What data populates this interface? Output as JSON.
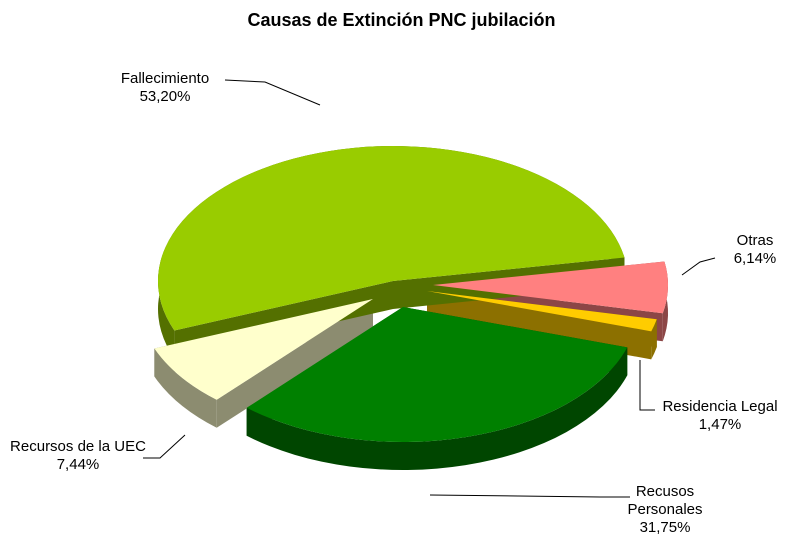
{
  "chart_data": {
    "type": "pie",
    "title": "Causas de Extinción PNC jubilación",
    "categories": [
      "Otras",
      "Residencia Legal",
      "Recusos Personales",
      "Recursos de la UEC",
      "Fallecimiento"
    ],
    "values": [
      6.14,
      1.47,
      31.75,
      7.44,
      53.2
    ],
    "value_labels": [
      "6,14%",
      "1,47%",
      "31,75%",
      "7,44%",
      "53,20%"
    ],
    "colors": [
      "#ff8080",
      "#ffcc00",
      "#008000",
      "#ffffcc",
      "#99cc00"
    ]
  }
}
